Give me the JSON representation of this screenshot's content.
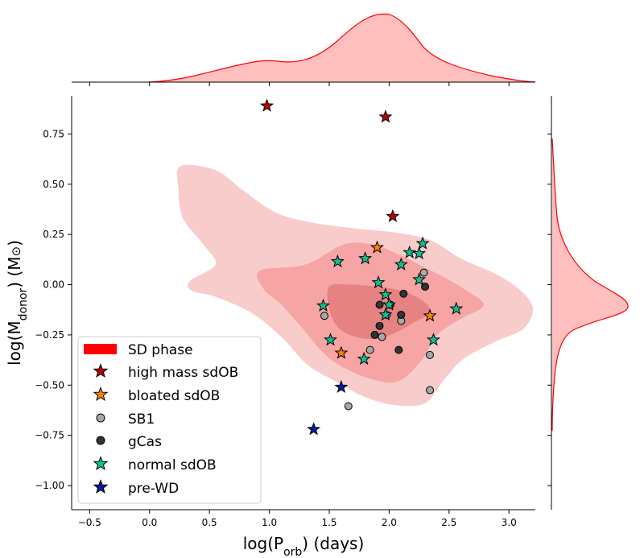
{
  "chart_data": {
    "type": "scatter",
    "xlabel": "log(P",
    "xlabel_sub": "orb",
    "xlabel_tail": ") (days)",
    "ylabel": "log(M",
    "ylabel_sub": "donor",
    "ylabel_tail": ") (M",
    "ylabel_sym": "⊙",
    "ylabel_end": ")",
    "xlim": [
      -0.65,
      3.22
    ],
    "ylim": [
      -1.12,
      0.94
    ],
    "xticks": [
      -0.5,
      0.0,
      0.5,
      1.0,
      1.5,
      2.0,
      2.5,
      3.0
    ],
    "xtick_labels": [
      "−0.5",
      "0.0",
      "0.5",
      "1.0",
      "1.5",
      "2.0",
      "2.5",
      "3.0"
    ],
    "yticks": [
      0.75,
      0.5,
      0.25,
      0.0,
      -0.25,
      -0.5,
      -0.75,
      -1.0
    ],
    "ytick_labels": [
      "0.75",
      "0.50",
      "0.25",
      "0.00",
      "−0.25",
      "−0.50",
      "−0.75",
      "−1.00"
    ],
    "grid": false,
    "legend_position": "lower-left",
    "density_color": "#ff0000",
    "density_levels": [
      {
        "level": "outer",
        "polygon": [
          [
            0.26,
            0.59
          ],
          [
            0.55,
            0.57
          ],
          [
            0.78,
            0.47
          ],
          [
            1.05,
            0.36
          ],
          [
            1.35,
            0.31
          ],
          [
            1.72,
            0.28
          ],
          [
            2.05,
            0.26
          ],
          [
            2.35,
            0.22
          ],
          [
            2.6,
            0.13
          ],
          [
            2.9,
            0.05
          ],
          [
            3.1,
            -0.03
          ],
          [
            3.2,
            -0.12
          ],
          [
            3.12,
            -0.22
          ],
          [
            2.9,
            -0.28
          ],
          [
            2.62,
            -0.37
          ],
          [
            2.45,
            -0.48
          ],
          [
            2.3,
            -0.59
          ],
          [
            2.05,
            -0.6
          ],
          [
            1.8,
            -0.56
          ],
          [
            1.55,
            -0.48
          ],
          [
            1.32,
            -0.4
          ],
          [
            1.1,
            -0.26
          ],
          [
            0.85,
            -0.14
          ],
          [
            0.55,
            -0.06
          ],
          [
            0.35,
            -0.03
          ],
          [
            0.34,
            0.02
          ],
          [
            0.55,
            0.1
          ],
          [
            0.45,
            0.2
          ],
          [
            0.28,
            0.33
          ],
          [
            0.24,
            0.48
          ]
        ]
      },
      {
        "level": "middle",
        "polygon": [
          [
            0.92,
            0.07
          ],
          [
            1.3,
            0.1
          ],
          [
            1.62,
            0.2
          ],
          [
            1.86,
            0.2
          ],
          [
            2.08,
            0.15
          ],
          [
            2.25,
            0.1
          ],
          [
            2.45,
            0.04
          ],
          [
            2.62,
            -0.02
          ],
          [
            2.79,
            -0.1
          ],
          [
            2.6,
            -0.17
          ],
          [
            2.4,
            -0.25
          ],
          [
            2.28,
            -0.37
          ],
          [
            2.08,
            -0.48
          ],
          [
            1.85,
            -0.47
          ],
          [
            1.58,
            -0.4
          ],
          [
            1.42,
            -0.32
          ],
          [
            1.28,
            -0.22
          ],
          [
            1.1,
            -0.1
          ],
          [
            0.95,
            -0.02
          ]
        ]
      },
      {
        "level": "inner",
        "polygon": [
          [
            1.5,
            -0.01
          ],
          [
            1.68,
            0.0
          ],
          [
            1.9,
            -0.01
          ],
          [
            2.1,
            -0.03
          ],
          [
            2.28,
            -0.08
          ],
          [
            2.34,
            -0.14
          ],
          [
            2.2,
            -0.19
          ],
          [
            2.05,
            -0.24
          ],
          [
            1.9,
            -0.27
          ],
          [
            1.72,
            -0.26
          ],
          [
            1.57,
            -0.21
          ],
          [
            1.5,
            -0.12
          ]
        ]
      }
    ],
    "series": [
      {
        "name": "high mass sdOB",
        "marker": "star",
        "color": "#c00000",
        "points": [
          [
            0.98,
            0.89
          ],
          [
            1.97,
            0.835
          ],
          [
            2.03,
            0.34
          ]
        ]
      },
      {
        "name": "bloated sdOB",
        "marker": "star",
        "color": "#ff8000",
        "points": [
          [
            1.9,
            0.185
          ],
          [
            2.34,
            -0.155
          ],
          [
            1.6,
            -0.34
          ]
        ]
      },
      {
        "name": "SB1",
        "marker": "circle",
        "color": "#a8a8a8",
        "points": [
          [
            1.46,
            -0.155
          ],
          [
            1.98,
            -0.15
          ],
          [
            2.1,
            -0.18
          ],
          [
            2.29,
            0.06
          ],
          [
            1.94,
            -0.26
          ],
          [
            1.84,
            -0.325
          ],
          [
            2.34,
            -0.525
          ],
          [
            1.66,
            -0.605
          ],
          [
            2.34,
            -0.35
          ]
        ]
      },
      {
        "name": "gCas",
        "marker": "circle",
        "color": "#333333",
        "points": [
          [
            1.92,
            -0.1
          ],
          [
            2.01,
            -0.1
          ],
          [
            2.12,
            -0.045
          ],
          [
            2.3,
            -0.01
          ],
          [
            1.92,
            -0.205
          ],
          [
            1.88,
            -0.25
          ],
          [
            2.08,
            -0.325
          ],
          [
            2.1,
            -0.15
          ]
        ]
      },
      {
        "name": "normal sdOB",
        "marker": "star",
        "color": "#10c090",
        "points": [
          [
            2.28,
            0.205
          ],
          [
            2.17,
            0.16
          ],
          [
            2.25,
            0.155
          ],
          [
            1.57,
            0.115
          ],
          [
            1.8,
            0.13
          ],
          [
            2.1,
            0.1
          ],
          [
            2.25,
            0.025
          ],
          [
            1.91,
            0.01
          ],
          [
            1.97,
            -0.05
          ],
          [
            2.0,
            -0.1
          ],
          [
            1.97,
            -0.15
          ],
          [
            1.45,
            -0.105
          ],
          [
            2.56,
            -0.12
          ],
          [
            2.37,
            -0.275
          ],
          [
            1.51,
            -0.275
          ],
          [
            1.79,
            -0.37
          ]
        ]
      },
      {
        "name": "pre-WD",
        "marker": "star",
        "color": "#001ea0",
        "points": [
          [
            1.6,
            -0.51
          ],
          [
            1.37,
            -0.72
          ]
        ]
      }
    ],
    "legend_patch": "SD phase",
    "marginal_x": "density of log(P_orb)",
    "marginal_y": "density of log(M_donor)"
  }
}
